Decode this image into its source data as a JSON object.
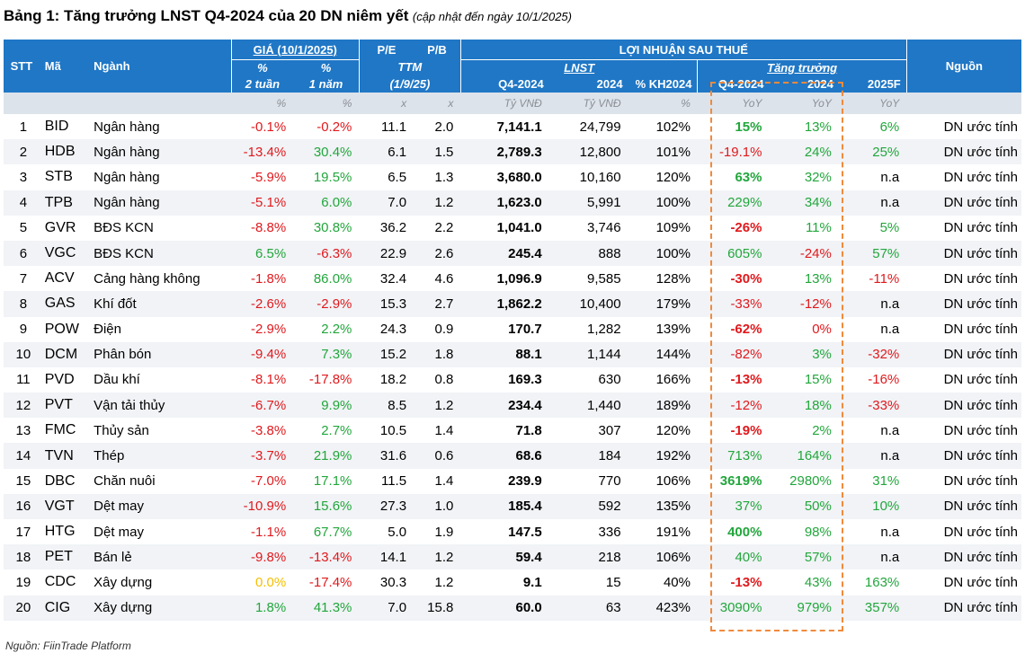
{
  "title": {
    "main": "Bảng 1: Tăng trưởng LNST Q4-2024 của 20 DN niêm yết",
    "sub": "(cập nhật đến ngày 10/1/2025)"
  },
  "header": {
    "stt": "STT",
    "ma": "Mã",
    "nganh": "Ngành",
    "gia_group": "GIÁ (10/1/2025)",
    "gia_2tuan_a": "%",
    "gia_2tuan_b": "2 tuần",
    "gia_1nam_a": "%",
    "gia_1nam_b": "1 năm",
    "pe": "P/E",
    "pb": "P/B",
    "ttm_a": "TTM",
    "ttm_b": "(1/9/25)",
    "lnst_group": "LỢI NHUẬN SAU THUẾ",
    "lnst_sub": "LNST",
    "tang_truong": "Tăng trưởng",
    "q4_2024": "Q4-2024",
    "y2024": "2024",
    "kh2024": "% KH2024",
    "g_q4": "Q4-2024",
    "g_2024": "2024",
    "g_2025f": "2025F",
    "nguon": "Nguồn"
  },
  "units": [
    "%",
    "%",
    "x",
    "x",
    "Tỷ VNĐ",
    "Tỷ VNĐ",
    "%",
    "YoY",
    "YoY",
    "YoY"
  ],
  "rows": [
    {
      "stt": "1",
      "ma": "BID",
      "nganh": "Ngân hàng",
      "g2": "-0.1%",
      "g2c": "neg",
      "g1": "-0.2%",
      "g1c": "neg",
      "pe": "11.1",
      "pb": "2.0",
      "q4": "7,141.1",
      "y24": "24,799",
      "kh": "102%",
      "tq": "15%",
      "tqc": "pos",
      "tqb": true,
      "ty": "13%",
      "tyc": "pos",
      "tf": "6%",
      "tfc": "pos",
      "src": "DN ước tính"
    },
    {
      "stt": "2",
      "ma": "HDB",
      "nganh": "Ngân hàng",
      "g2": "-13.4%",
      "g2c": "neg",
      "g1": "30.4%",
      "g1c": "pos",
      "pe": "6.1",
      "pb": "1.5",
      "q4": "2,789.3",
      "y24": "12,800",
      "kh": "101%",
      "tq": "-19.1%",
      "tqc": "neg",
      "tqb": false,
      "ty": "24%",
      "tyc": "pos",
      "tf": "25%",
      "tfc": "pos",
      "src": "DN ước tính"
    },
    {
      "stt": "3",
      "ma": "STB",
      "nganh": "Ngân hàng",
      "g2": "-5.9%",
      "g2c": "neg",
      "g1": "19.5%",
      "g1c": "pos",
      "pe": "6.5",
      "pb": "1.3",
      "q4": "3,680.0",
      "y24": "10,160",
      "kh": "120%",
      "tq": "63%",
      "tqc": "pos",
      "tqb": true,
      "ty": "32%",
      "tyc": "pos",
      "tf": "n.a",
      "tfc": "neu",
      "src": "DN ước tính"
    },
    {
      "stt": "4",
      "ma": "TPB",
      "nganh": "Ngân hàng",
      "g2": "-5.1%",
      "g2c": "neg",
      "g1": "6.0%",
      "g1c": "pos",
      "pe": "7.0",
      "pb": "1.2",
      "q4": "1,623.0",
      "y24": "5,991",
      "kh": "100%",
      "tq": "229%",
      "tqc": "pos",
      "tqb": false,
      "ty": "34%",
      "tyc": "pos",
      "tf": "n.a",
      "tfc": "neu",
      "src": "DN ước tính"
    },
    {
      "stt": "5",
      "ma": "GVR",
      "nganh": "BĐS KCN",
      "g2": "-8.8%",
      "g2c": "neg",
      "g1": "30.8%",
      "g1c": "pos",
      "pe": "36.2",
      "pb": "2.2",
      "q4": "1,041.0",
      "y24": "3,746",
      "kh": "109%",
      "tq": "-26%",
      "tqc": "neg",
      "tqb": true,
      "ty": "11%",
      "tyc": "pos",
      "tf": "5%",
      "tfc": "pos",
      "src": "DN ước tính"
    },
    {
      "stt": "6",
      "ma": "VGC",
      "nganh": "BĐS KCN",
      "g2": "6.5%",
      "g2c": "pos",
      "g1": "-6.3%",
      "g1c": "neg",
      "pe": "22.9",
      "pb": "2.6",
      "q4": "245.4",
      "y24": "888",
      "kh": "100%",
      "tq": "605%",
      "tqc": "pos",
      "tqb": false,
      "ty": "-24%",
      "tyc": "neg",
      "tf": "57%",
      "tfc": "pos",
      "src": "DN ước tính"
    },
    {
      "stt": "7",
      "ma": "ACV",
      "nganh": "Cảng hàng không",
      "g2": "-1.8%",
      "g2c": "neg",
      "g1": "86.0%",
      "g1c": "pos",
      "pe": "32.4",
      "pb": "4.6",
      "q4": "1,096.9",
      "y24": "9,585",
      "kh": "128%",
      "tq": "-30%",
      "tqc": "neg",
      "tqb": true,
      "ty": "13%",
      "tyc": "pos",
      "tf": "-11%",
      "tfc": "neg",
      "src": "DN ước tính"
    },
    {
      "stt": "8",
      "ma": "GAS",
      "nganh": "Khí đốt",
      "g2": "-2.6%",
      "g2c": "neg",
      "g1": "-2.9%",
      "g1c": "neg",
      "pe": "15.3",
      "pb": "2.7",
      "q4": "1,862.2",
      "y24": "10,400",
      "kh": "179%",
      "tq": "-33%",
      "tqc": "neg",
      "tqb": false,
      "ty": "-12%",
      "tyc": "neg",
      "tf": "n.a",
      "tfc": "neu",
      "src": "DN ước tính"
    },
    {
      "stt": "9",
      "ma": "POW",
      "nganh": "Điện",
      "g2": "-2.9%",
      "g2c": "neg",
      "g1": "2.2%",
      "g1c": "pos",
      "pe": "24.3",
      "pb": "0.9",
      "q4": "170.7",
      "y24": "1,282",
      "kh": "139%",
      "tq": "-62%",
      "tqc": "neg",
      "tqb": true,
      "ty": "0%",
      "tyc": "neg",
      "tf": "n.a",
      "tfc": "neu",
      "src": "DN ước tính"
    },
    {
      "stt": "10",
      "ma": "DCM",
      "nganh": "Phân bón",
      "g2": "-9.4%",
      "g2c": "neg",
      "g1": "7.3%",
      "g1c": "pos",
      "pe": "15.2",
      "pb": "1.8",
      "q4": "88.1",
      "y24": "1,144",
      "kh": "144%",
      "tq": "-82%",
      "tqc": "neg",
      "tqb": false,
      "ty": "3%",
      "tyc": "pos",
      "tf": "-32%",
      "tfc": "neg",
      "src": "DN ước tính"
    },
    {
      "stt": "11",
      "ma": "PVD",
      "nganh": "Dầu khí",
      "g2": "-8.1%",
      "g2c": "neg",
      "g1": "-17.8%",
      "g1c": "neg",
      "pe": "18.2",
      "pb": "0.8",
      "q4": "169.3",
      "y24": "630",
      "kh": "166%",
      "tq": "-13%",
      "tqc": "neg",
      "tqb": true,
      "ty": "15%",
      "tyc": "pos",
      "tf": "-16%",
      "tfc": "neg",
      "src": "DN ước tính"
    },
    {
      "stt": "12",
      "ma": "PVT",
      "nganh": "Vận tải thủy",
      "g2": "-6.7%",
      "g2c": "neg",
      "g1": "9.9%",
      "g1c": "pos",
      "pe": "8.5",
      "pb": "1.2",
      "q4": "234.4",
      "y24": "1,440",
      "kh": "189%",
      "tq": "-12%",
      "tqc": "neg",
      "tqb": false,
      "ty": "18%",
      "tyc": "pos",
      "tf": "-33%",
      "tfc": "neg",
      "src": "DN ước tính"
    },
    {
      "stt": "13",
      "ma": "FMC",
      "nganh": "Thủy sản",
      "g2": "-3.8%",
      "g2c": "neg",
      "g1": "2.7%",
      "g1c": "pos",
      "pe": "10.5",
      "pb": "1.4",
      "q4": "71.8",
      "y24": "307",
      "kh": "120%",
      "tq": "-19%",
      "tqc": "neg",
      "tqb": true,
      "ty": "2%",
      "tyc": "pos",
      "tf": "n.a",
      "tfc": "neu",
      "src": "DN ước tính"
    },
    {
      "stt": "14",
      "ma": "TVN",
      "nganh": "Thép",
      "g2": "-3.7%",
      "g2c": "neg",
      "g1": "21.9%",
      "g1c": "pos",
      "pe": "31.6",
      "pb": "0.6",
      "q4": "68.6",
      "y24": "184",
      "kh": "192%",
      "tq": "713%",
      "tqc": "pos",
      "tqb": false,
      "ty": "164%",
      "tyc": "pos",
      "tf": "n.a",
      "tfc": "neu",
      "src": "DN ước tính"
    },
    {
      "stt": "15",
      "ma": "DBC",
      "nganh": "Chăn nuôi",
      "g2": "-7.0%",
      "g2c": "neg",
      "g1": "17.1%",
      "g1c": "pos",
      "pe": "11.5",
      "pb": "1.4",
      "q4": "239.9",
      "y24": "770",
      "kh": "106%",
      "tq": "3619%",
      "tqc": "pos",
      "tqb": true,
      "ty": "2980%",
      "tyc": "pos",
      "tf": "31%",
      "tfc": "pos",
      "src": "DN ước tính"
    },
    {
      "stt": "16",
      "ma": "VGT",
      "nganh": "Dệt may",
      "g2": "-10.9%",
      "g2c": "neg",
      "g1": "15.6%",
      "g1c": "pos",
      "pe": "27.3",
      "pb": "1.0",
      "q4": "185.4",
      "y24": "592",
      "kh": "135%",
      "tq": "37%",
      "tqc": "pos",
      "tqb": false,
      "ty": "50%",
      "tyc": "pos",
      "tf": "10%",
      "tfc": "pos",
      "src": "DN ước tính"
    },
    {
      "stt": "17",
      "ma": "HTG",
      "nganh": "Dệt may",
      "g2": "-1.1%",
      "g2c": "neg",
      "g1": "67.7%",
      "g1c": "pos",
      "pe": "5.0",
      "pb": "1.9",
      "q4": "147.5",
      "y24": "336",
      "kh": "191%",
      "tq": "400%",
      "tqc": "pos",
      "tqb": true,
      "ty": "98%",
      "tyc": "pos",
      "tf": "n.a",
      "tfc": "neu",
      "src": "DN ước tính"
    },
    {
      "stt": "18",
      "ma": "PET",
      "nganh": "Bán lẻ",
      "g2": "-9.8%",
      "g2c": "neg",
      "g1": "-13.4%",
      "g1c": "neg",
      "pe": "14.1",
      "pb": "1.2",
      "q4": "59.4",
      "y24": "218",
      "kh": "106%",
      "tq": "40%",
      "tqc": "pos",
      "tqb": false,
      "ty": "57%",
      "tyc": "pos",
      "tf": "n.a",
      "tfc": "neu",
      "src": "DN ước tính"
    },
    {
      "stt": "19",
      "ma": "CDC",
      "nganh": "Xây dựng",
      "g2": "0.0%",
      "g2c": "yel",
      "g1": "-17.4%",
      "g1c": "neg",
      "pe": "30.3",
      "pb": "1.2",
      "q4": "9.1",
      "y24": "15",
      "kh": "40%",
      "tq": "-13%",
      "tqc": "neg",
      "tqb": true,
      "ty": "43%",
      "tyc": "pos",
      "tf": "163%",
      "tfc": "pos",
      "src": "DN ước tính"
    },
    {
      "stt": "20",
      "ma": "CIG",
      "nganh": "Xây dựng",
      "g2": "1.8%",
      "g2c": "pos",
      "g1": "41.3%",
      "g1c": "pos",
      "pe": "7.0",
      "pb": "15.8",
      "q4": "60.0",
      "y24": "63",
      "kh": "423%",
      "tq": "3090%",
      "tqc": "pos",
      "tqb": false,
      "ty": "979%",
      "tyc": "pos",
      "tf": "357%",
      "tfc": "pos",
      "src": "DN ước tính"
    }
  ],
  "colors": {
    "header_bg": "#1f77c6",
    "negative": "#e0191d",
    "positive": "#22a63c",
    "zero": "#f4bf00",
    "highlight_border": "#f08a3c"
  },
  "footer": "Nguồn: FiinTrade Platform"
}
